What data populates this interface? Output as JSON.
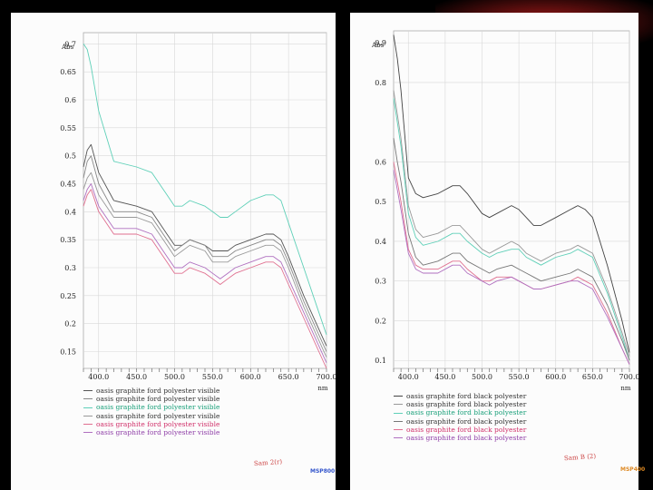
{
  "charts": [
    {
      "id": "left",
      "legend": [
        "oasis graphite ford polyester visible",
        "oasis graphite ford polyester visible",
        "oasis graphite ford polyester visible",
        "oasis graphite ford polyester visible",
        "oasis graphite ford polyester visible",
        "oasis graphite ford polyester visible"
      ],
      "signature": "Sam 2(r)",
      "stamp": "MSP800",
      "stamp_color": "#3355cc"
    },
    {
      "id": "right",
      "legend": [
        "oasis graphite ford black polyester",
        "oasis graphite ford black polyester",
        "oasis graphite ford black polyester",
        "oasis graphite ford black polyester",
        "oasis graphite ford black polyester",
        "oasis graphite ford black polyester"
      ],
      "signature": "Sam B (2)",
      "stamp": "MSP400",
      "stamp_color": "#dd8822"
    }
  ],
  "chart_data": [
    {
      "type": "line",
      "ylabel": "Abs",
      "xlabel": "nm",
      "xlim": [
        380,
        700
      ],
      "ylim": [
        0.12,
        0.72
      ],
      "grid": true,
      "legend_position": "bottom-left",
      "x_ticks": [
        "400.0",
        "450.0",
        "500.0",
        "550.0",
        "600.0",
        "650.0",
        "700.0"
      ],
      "y_ticks": [
        "0.7",
        "0.65",
        "0.6",
        "0.55",
        "0.5",
        "0.45",
        "0.4",
        "0.35",
        "0.3",
        "0.25",
        "0.2",
        "0.15"
      ],
      "x": [
        380,
        385,
        390,
        400,
        420,
        450,
        470,
        490,
        500,
        510,
        520,
        540,
        550,
        560,
        570,
        580,
        600,
        620,
        630,
        640,
        650,
        670,
        690,
        700
      ],
      "series": [
        {
          "color": "#555555",
          "values": [
            0.48,
            0.51,
            0.52,
            0.47,
            0.42,
            0.41,
            0.4,
            0.36,
            0.34,
            0.34,
            0.35,
            0.34,
            0.33,
            0.33,
            0.33,
            0.34,
            0.35,
            0.36,
            0.36,
            0.35,
            0.32,
            0.25,
            0.19,
            0.16
          ]
        },
        {
          "color": "#888888",
          "values": [
            0.46,
            0.49,
            0.5,
            0.45,
            0.4,
            0.4,
            0.39,
            0.35,
            0.33,
            0.34,
            0.35,
            0.34,
            0.32,
            0.32,
            0.32,
            0.33,
            0.34,
            0.35,
            0.35,
            0.34,
            0.31,
            0.24,
            0.18,
            0.15
          ]
        },
        {
          "color": "#5fd0b8",
          "values": [
            0.7,
            0.69,
            0.66,
            0.58,
            0.49,
            0.48,
            0.47,
            0.43,
            0.41,
            0.41,
            0.42,
            0.41,
            0.4,
            0.39,
            0.39,
            0.4,
            0.42,
            0.43,
            0.43,
            0.42,
            0.38,
            0.3,
            0.22,
            0.18
          ]
        },
        {
          "color": "#999999",
          "values": [
            0.44,
            0.46,
            0.47,
            0.43,
            0.39,
            0.39,
            0.38,
            0.34,
            0.32,
            0.33,
            0.34,
            0.33,
            0.31,
            0.31,
            0.31,
            0.32,
            0.33,
            0.34,
            0.34,
            0.33,
            0.3,
            0.23,
            0.17,
            0.14
          ]
        },
        {
          "color": "#e07090",
          "values": [
            0.41,
            0.43,
            0.44,
            0.4,
            0.36,
            0.36,
            0.35,
            0.31,
            0.29,
            0.29,
            0.3,
            0.29,
            0.28,
            0.27,
            0.28,
            0.29,
            0.3,
            0.31,
            0.31,
            0.3,
            0.27,
            0.21,
            0.15,
            0.12
          ]
        },
        {
          "color": "#b070c0",
          "values": [
            0.42,
            0.44,
            0.45,
            0.41,
            0.37,
            0.37,
            0.36,
            0.32,
            0.3,
            0.3,
            0.31,
            0.3,
            0.29,
            0.28,
            0.29,
            0.3,
            0.31,
            0.32,
            0.32,
            0.31,
            0.28,
            0.22,
            0.16,
            0.13
          ]
        }
      ]
    },
    {
      "type": "line",
      "ylabel": "Abs",
      "xlabel": "nm",
      "xlim": [
        380,
        700
      ],
      "ylim": [
        0.08,
        0.93
      ],
      "grid": true,
      "legend_position": "bottom-left",
      "x_ticks": [
        "400.0",
        "450.0",
        "500.0",
        "550.0",
        "600.0",
        "650.0",
        "700.0"
      ],
      "y_ticks": [
        "0.9",
        "0.8",
        "0.6",
        "0.5",
        "0.4",
        "0.3",
        "0.2",
        "0.1"
      ],
      "x": [
        380,
        385,
        390,
        400,
        410,
        420,
        440,
        460,
        470,
        480,
        500,
        510,
        520,
        540,
        550,
        560,
        570,
        580,
        600,
        620,
        630,
        640,
        650,
        670,
        690,
        700
      ],
      "series": [
        {
          "color": "#444444",
          "values": [
            0.92,
            0.86,
            0.78,
            0.56,
            0.52,
            0.51,
            0.52,
            0.54,
            0.54,
            0.52,
            0.47,
            0.46,
            0.47,
            0.49,
            0.48,
            0.46,
            0.44,
            0.44,
            0.46,
            0.48,
            0.49,
            0.48,
            0.46,
            0.34,
            0.2,
            0.12
          ]
        },
        {
          "color": "#999999",
          "values": [
            0.78,
            0.72,
            0.66,
            0.49,
            0.43,
            0.41,
            0.42,
            0.44,
            0.44,
            0.42,
            0.38,
            0.37,
            0.38,
            0.4,
            0.39,
            0.37,
            0.36,
            0.35,
            0.37,
            0.38,
            0.39,
            0.38,
            0.37,
            0.28,
            0.17,
            0.11
          ]
        },
        {
          "color": "#5fd0b8",
          "values": [
            0.76,
            0.7,
            0.64,
            0.47,
            0.41,
            0.39,
            0.4,
            0.42,
            0.42,
            0.4,
            0.37,
            0.36,
            0.37,
            0.38,
            0.38,
            0.36,
            0.35,
            0.34,
            0.36,
            0.37,
            0.38,
            0.37,
            0.36,
            0.27,
            0.16,
            0.1
          ]
        },
        {
          "color": "#777777",
          "values": [
            0.66,
            0.6,
            0.55,
            0.42,
            0.36,
            0.34,
            0.35,
            0.37,
            0.37,
            0.35,
            0.33,
            0.32,
            0.33,
            0.34,
            0.33,
            0.32,
            0.31,
            0.3,
            0.31,
            0.32,
            0.33,
            0.32,
            0.31,
            0.24,
            0.15,
            0.1
          ]
        },
        {
          "color": "#e07090",
          "values": [
            0.6,
            0.55,
            0.5,
            0.38,
            0.34,
            0.33,
            0.33,
            0.35,
            0.35,
            0.33,
            0.3,
            0.3,
            0.31,
            0.31,
            0.3,
            0.29,
            0.28,
            0.28,
            0.29,
            0.3,
            0.31,
            0.3,
            0.29,
            0.22,
            0.13,
            0.09
          ]
        },
        {
          "color": "#b070c0",
          "values": [
            0.58,
            0.53,
            0.48,
            0.37,
            0.33,
            0.32,
            0.32,
            0.34,
            0.34,
            0.32,
            0.3,
            0.29,
            0.3,
            0.31,
            0.3,
            0.29,
            0.28,
            0.28,
            0.29,
            0.3,
            0.3,
            0.29,
            0.28,
            0.21,
            0.13,
            0.09
          ]
        }
      ]
    }
  ]
}
